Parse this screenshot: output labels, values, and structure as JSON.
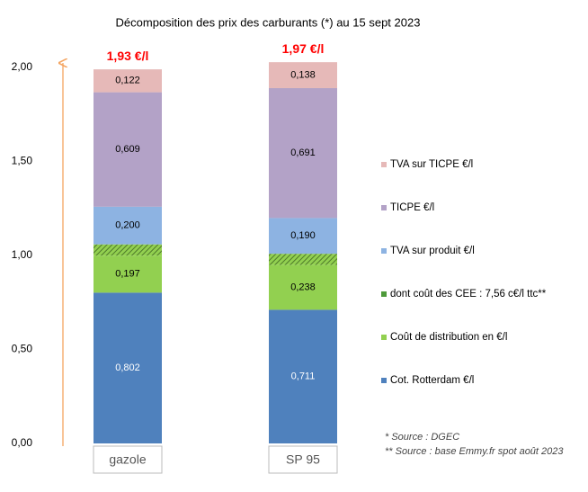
{
  "chart_data": {
    "type": "stacked-bar",
    "title": "Décomposition des prix des carburants (*) au 15 sept 2023",
    "categories": [
      "gazole",
      "SP 95"
    ],
    "ylim": [
      0,
      2
    ],
    "yticks": [
      {
        "value": 0,
        "label": "0,00"
      },
      {
        "value": 0.5,
        "label": "0,50"
      },
      {
        "value": 1,
        "label": "1,00"
      },
      {
        "value": 1.5,
        "label": "1,50"
      },
      {
        "value": 2,
        "label": "2,00"
      }
    ],
    "series": [
      {
        "name": "Cot. Rotterdam €/l",
        "color": "#4f81bd",
        "values": [
          0.802,
          0.711
        ],
        "value_labels": [
          "0,802",
          "0,711"
        ]
      },
      {
        "name": "Coût de distribution en €/l",
        "color": "#92d050",
        "values": [
          0.197,
          0.238
        ],
        "value_labels": [
          "0,197",
          "0,238"
        ]
      },
      {
        "name": "dont coût des CEE : 7,56 c€/l ttc**",
        "color": "#4e9a3a",
        "pattern": "hatch",
        "values": [
          0.06,
          0.06
        ]
      },
      {
        "name": "TVA sur produit €/l",
        "color": "#8db3e2",
        "values": [
          0.2,
          0.19
        ],
        "value_labels": [
          "0,200",
          "0,190"
        ]
      },
      {
        "name": "TICPE €/l",
        "color": "#b3a2c7",
        "values": [
          0.609,
          0.691
        ],
        "value_labels": [
          "0,609",
          "0,691"
        ]
      },
      {
        "name": "TVA sur TICPE €/l",
        "color": "#e6b9b8",
        "values": [
          0.122,
          0.138
        ],
        "value_labels": [
          "0,122",
          "0,138"
        ]
      }
    ],
    "totals": {
      "color": "#ff0000",
      "values": [
        1.93,
        1.97
      ],
      "value_labels": [
        "1,93 €/l",
        "1,97 €/l"
      ]
    },
    "notes": [
      "* Source : DGEC",
      "** Source : base Emmy.fr spot août 2023"
    ]
  }
}
